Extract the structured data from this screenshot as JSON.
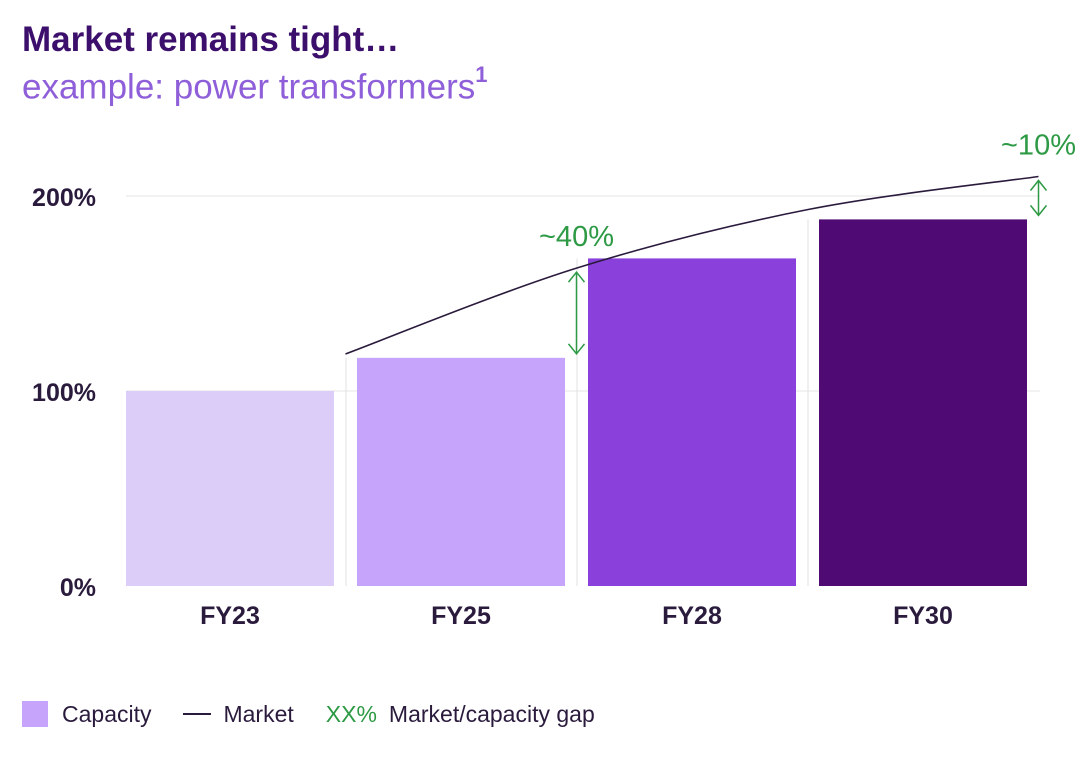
{
  "header": {
    "title": "Market remains tight…",
    "subtitle": "example: power transformers",
    "footnote_marker": "1"
  },
  "chart_data": {
    "type": "bar",
    "categories": [
      "FY23",
      "FY25",
      "FY28",
      "FY30"
    ],
    "series": [
      {
        "name": "Capacity",
        "kind": "bar",
        "values": [
          100,
          117,
          168,
          188
        ]
      },
      {
        "name": "Market",
        "kind": "line",
        "values": [
          119,
          163,
          193,
          210
        ]
      }
    ],
    "market_line_x_offset": 0.5,
    "gap_annotations": [
      {
        "category": "FY25",
        "label": "~40%",
        "from": 117,
        "to": 163
      },
      {
        "category": "FY30",
        "label": "~10%",
        "from": 188,
        "to": 210
      }
    ],
    "y_ticks": [
      0,
      100,
      200
    ],
    "y_tick_labels": [
      "0%",
      "100%",
      "200%"
    ],
    "ylim": [
      0,
      200
    ],
    "grid": true,
    "colors": {
      "bars": [
        "#dccdf8",
        "#c7a4fb",
        "#8a41dc",
        "#4f0b73"
      ],
      "market_line": "#2a1b3d",
      "gap": "#2e9a45",
      "grid": "#e6e6e6",
      "tick_label": "#2a1b3d"
    },
    "xlabel": "",
    "ylabel": ""
  },
  "legend": {
    "capacity_label": "Capacity",
    "market_label": "Market",
    "gap_sample": "XX%",
    "gap_label": "Market/capacity gap"
  }
}
